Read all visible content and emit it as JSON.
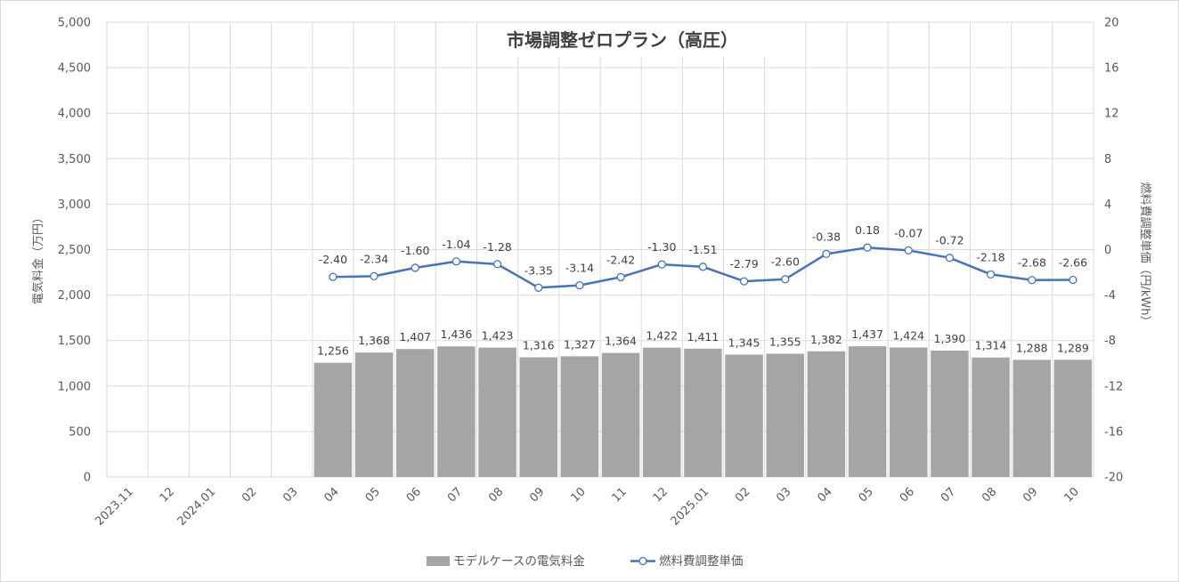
{
  "chart_data": {
    "type": "bar",
    "title": "市場調整ゼロプラン（高圧）",
    "ylabel": "電気料金（万円）",
    "y2label": "燃料費調整単価（円/kWh）",
    "ylim": [
      0,
      5000
    ],
    "y2lim": [
      -20,
      20
    ],
    "yticks": [
      "0",
      "500",
      "1,000",
      "1,500",
      "2,000",
      "2,500",
      "3,000",
      "3,500",
      "4,000",
      "4,500",
      "5,000"
    ],
    "y2ticks": [
      "-20",
      "-16",
      "-12",
      "-8",
      "-4",
      "0",
      "4",
      "8",
      "12",
      "16",
      "20"
    ],
    "categories": [
      "2023.11",
      "12",
      "2024.01",
      "02",
      "03",
      "04",
      "05",
      "06",
      "07",
      "08",
      "09",
      "10",
      "11",
      "12",
      "2025.01",
      "02",
      "03",
      "04",
      "05",
      "06",
      "07",
      "08",
      "09",
      "10"
    ],
    "grid": true,
    "legend_position": "bottom",
    "series": [
      {
        "name": "モデルケースの電気料金",
        "kind": "bar",
        "axis": "left",
        "color": "#a5a5a5",
        "values": [
          null,
          null,
          null,
          null,
          null,
          1256,
          1368,
          1407,
          1436,
          1423,
          1316,
          1327,
          1364,
          1422,
          1411,
          1345,
          1355,
          1382,
          1437,
          1424,
          1390,
          1314,
          1288,
          1289
        ],
        "labels": [
          "",
          "",
          "",
          "",
          "",
          "1,256",
          "1,368",
          "1,407",
          "1,436",
          "1,423",
          "1,316",
          "1,327",
          "1,364",
          "1,422",
          "1,411",
          "1,345",
          "1,355",
          "1,382",
          "1,437",
          "1,424",
          "1,390",
          "1,314",
          "1,288",
          "1,289"
        ]
      },
      {
        "name": "燃料費調整単価",
        "kind": "line",
        "axis": "right",
        "color": "#4472c4",
        "values": [
          null,
          null,
          null,
          null,
          null,
          -2.4,
          -2.34,
          -1.6,
          -1.04,
          -1.28,
          -3.35,
          -3.14,
          -2.42,
          -1.3,
          -1.51,
          -2.79,
          -2.6,
          -0.38,
          0.18,
          -0.07,
          -0.72,
          -2.18,
          -2.68,
          -2.66
        ],
        "labels": [
          "",
          "",
          "",
          "",
          "",
          "-2.40",
          "-2.34",
          "-1.60",
          "-1.04",
          "-1.28",
          "-3.35",
          "-3.14",
          "-2.42",
          "-1.30",
          "-1.51",
          "-2.79",
          "-2.60",
          "-0.38",
          "0.18",
          "-0.07",
          "-0.72",
          "-2.18",
          "-2.68",
          "-2.66"
        ]
      }
    ]
  }
}
